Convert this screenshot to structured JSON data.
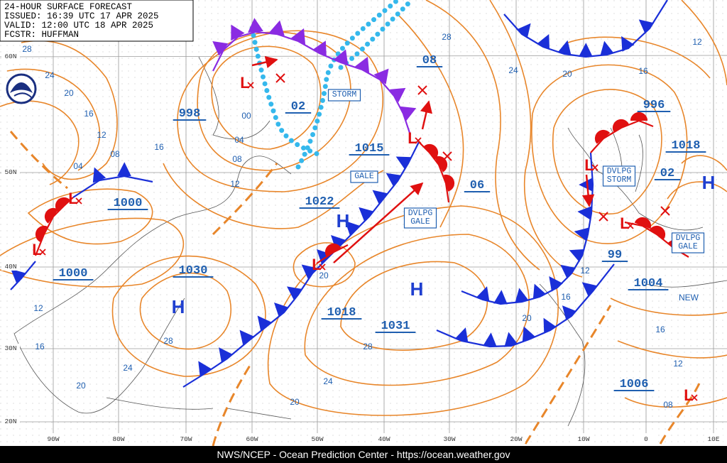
{
  "header": {
    "lines": [
      "24-HOUR SURFACE FORECAST",
      "ISSUED: 16:39 UTC 17 APR 2025",
      "VALID:  12:00 UTC 18 APR 2025",
      "FCSTR:  HUFFMAN"
    ]
  },
  "footer": "NWS/NCEP - Ocean Prediction Center - https://ocean.weather.gov",
  "latitude_labels": [
    "60N",
    "50N",
    "40N",
    "30N",
    "20N"
  ],
  "longitude_labels": [
    "90W",
    "80W",
    "70W",
    "60W",
    "50W",
    "40W",
    "30W",
    "20W",
    "10W",
    "0",
    "10E"
  ],
  "pressure_labels": [
    "1000",
    "1000",
    "1030",
    "998",
    "02",
    "08",
    "1015",
    "1022",
    "06",
    "996",
    "1018",
    "02",
    "99",
    "1004",
    "1018",
    "1031",
    "1006"
  ],
  "highs": [
    "H",
    "H",
    "H",
    "H"
  ],
  "lows": [
    "L",
    "L",
    "L",
    "L",
    "L",
    "L",
    "L",
    "L"
  ],
  "warnings": [
    {
      "lines": [
        "STORM"
      ]
    },
    {
      "lines": [
        "GALE"
      ]
    },
    {
      "lines": [
        "DVLPG",
        "GALE"
      ]
    },
    {
      "lines": [
        "DVLPG",
        "STORM"
      ]
    },
    {
      "lines": [
        "DVLPG",
        "GALE"
      ]
    }
  ],
  "note": "NEW",
  "isobar_labels": [
    "28",
    "24",
    "20",
    "16",
    "12",
    "08",
    "04",
    "16",
    "00",
    "04",
    "08",
    "12",
    "28",
    "24",
    "20",
    "16",
    "12",
    "20",
    "12",
    "16",
    "20",
    "12",
    "16",
    "28",
    "24",
    "20",
    "28",
    "24",
    "20",
    "16",
    "12",
    "08"
  ]
}
